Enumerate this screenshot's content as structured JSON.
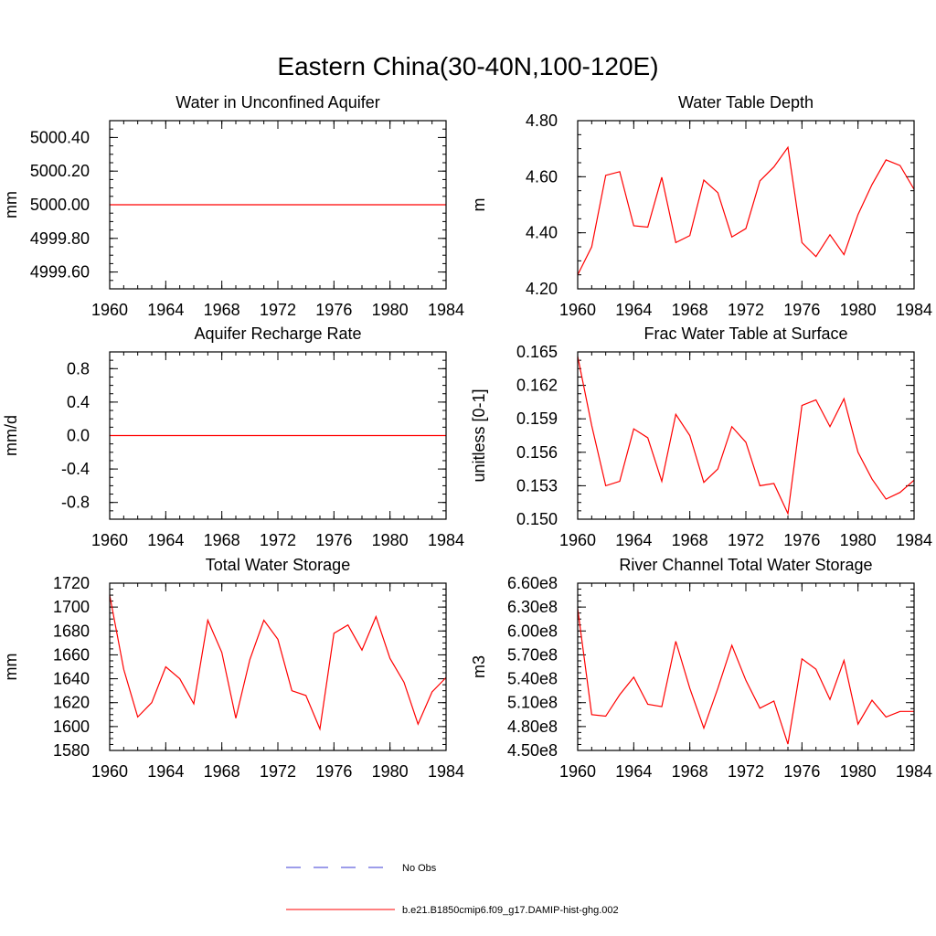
{
  "figure": {
    "title": "Eastern China(30-40N,100-120E)",
    "legend": [
      {
        "label": "No Obs",
        "color": "#3b3bd6",
        "style": "dashed"
      },
      {
        "label": "b.e21.B1850cmip6.f09_g17.DAMIP-hist-ghg.002",
        "color": "#ff0000",
        "style": "solid"
      }
    ]
  },
  "chart_data": [
    {
      "type": "line",
      "title": "Water in Unconfined Aquifer",
      "ylabel": "mm",
      "xlim": [
        1960,
        1984
      ],
      "ylim": [
        4999.5,
        5000.5
      ],
      "xticks": [
        "1960",
        "1964",
        "1968",
        "1972",
        "1976",
        "1980",
        "1984"
      ],
      "yticks": [
        {
          "v": 4999.6,
          "label": "4999.60"
        },
        {
          "v": 4999.8,
          "label": "4999.80"
        },
        {
          "v": 5000.0,
          "label": "5000.00"
        },
        {
          "v": 5000.2,
          "label": "5000.20"
        },
        {
          "v": 5000.4,
          "label": "5000.40"
        }
      ],
      "x": [
        1960,
        1961,
        1962,
        1963,
        1964,
        1965,
        1966,
        1967,
        1968,
        1969,
        1970,
        1971,
        1972,
        1973,
        1974,
        1975,
        1976,
        1977,
        1978,
        1979,
        1980,
        1981,
        1982,
        1983,
        1984
      ],
      "series": [
        {
          "values": [
            5000.0,
            5000.0,
            5000.0,
            5000.0,
            5000.0,
            5000.0,
            5000.0,
            5000.0,
            5000.0,
            5000.0,
            5000.0,
            5000.0,
            5000.0,
            5000.0,
            5000.0,
            5000.0,
            5000.0,
            5000.0,
            5000.0,
            5000.0,
            5000.0,
            5000.0,
            5000.0,
            5000.0,
            5000.0
          ],
          "color": "#ff0000"
        }
      ]
    },
    {
      "type": "line",
      "title": "Water Table Depth",
      "ylabel": "m",
      "xlim": [
        1960,
        1984
      ],
      "ylim": [
        4.2,
        4.8
      ],
      "xticks": [
        "1960",
        "1964",
        "1968",
        "1972",
        "1976",
        "1980",
        "1984"
      ],
      "yticks": [
        {
          "v": 4.2,
          "label": "4.20"
        },
        {
          "v": 4.4,
          "label": "4.40"
        },
        {
          "v": 4.6,
          "label": "4.60"
        },
        {
          "v": 4.8,
          "label": "4.80"
        }
      ],
      "x": [
        1960,
        1961,
        1962,
        1963,
        1964,
        1965,
        1966,
        1967,
        1968,
        1969,
        1970,
        1971,
        1972,
        1973,
        1974,
        1975,
        1976,
        1977,
        1978,
        1979,
        1980,
        1981,
        1982,
        1983,
        1984
      ],
      "series": [
        {
          "values": [
            4.25,
            4.35,
            4.605,
            4.618,
            4.425,
            4.42,
            4.598,
            4.365,
            4.39,
            4.588,
            4.543,
            4.385,
            4.415,
            4.585,
            4.635,
            4.705,
            4.365,
            4.315,
            4.393,
            4.322,
            4.465,
            4.572,
            4.66,
            4.64,
            4.555
          ],
          "color": "#ff0000"
        }
      ]
    },
    {
      "type": "line",
      "title": "Aquifer Recharge Rate",
      "ylabel": "mm/d",
      "xlim": [
        1960,
        1984
      ],
      "ylim": [
        -1.0,
        1.0
      ],
      "xticks": [
        "1960",
        "1964",
        "1968",
        "1972",
        "1976",
        "1980",
        "1984"
      ],
      "yticks": [
        {
          "v": -0.8,
          "label": "-0.8"
        },
        {
          "v": -0.4,
          "label": "-0.4"
        },
        {
          "v": 0.0,
          "label": "0.0"
        },
        {
          "v": 0.4,
          "label": "0.4"
        },
        {
          "v": 0.8,
          "label": "0.8"
        }
      ],
      "x": [
        1960,
        1961,
        1962,
        1963,
        1964,
        1965,
        1966,
        1967,
        1968,
        1969,
        1970,
        1971,
        1972,
        1973,
        1974,
        1975,
        1976,
        1977,
        1978,
        1979,
        1980,
        1981,
        1982,
        1983,
        1984
      ],
      "series": [
        {
          "values": [
            0,
            0,
            0,
            0,
            0,
            0,
            0,
            0,
            0,
            0,
            0,
            0,
            0,
            0,
            0,
            0,
            0,
            0,
            0,
            0,
            0,
            0,
            0,
            0,
            0
          ],
          "color": "#ff0000"
        }
      ]
    },
    {
      "type": "line",
      "title": "Frac Water Table at Surface",
      "ylabel": "unitless [0-1]",
      "xlim": [
        1960,
        1984
      ],
      "ylim": [
        0.15,
        0.165
      ],
      "xticks": [
        "1960",
        "1964",
        "1968",
        "1972",
        "1976",
        "1980",
        "1984"
      ],
      "yticks": [
        {
          "v": 0.15,
          "label": "0.150"
        },
        {
          "v": 0.153,
          "label": "0.153"
        },
        {
          "v": 0.156,
          "label": "0.156"
        },
        {
          "v": 0.159,
          "label": "0.159"
        },
        {
          "v": 0.162,
          "label": "0.162"
        },
        {
          "v": 0.165,
          "label": "0.165"
        }
      ],
      "x": [
        1960,
        1961,
        1962,
        1963,
        1964,
        1965,
        1966,
        1967,
        1968,
        1969,
        1970,
        1971,
        1972,
        1973,
        1974,
        1975,
        1976,
        1977,
        1978,
        1979,
        1980,
        1981,
        1982,
        1983,
        1984
      ],
      "series": [
        {
          "values": [
            0.1646,
            0.1584,
            0.153,
            0.1534,
            0.1581,
            0.1573,
            0.1534,
            0.1594,
            0.1575,
            0.1533,
            0.1545,
            0.1583,
            0.1569,
            0.153,
            0.1532,
            0.1505,
            0.1602,
            0.1607,
            0.1583,
            0.1608,
            0.156,
            0.1536,
            0.1518,
            0.1524,
            0.1535
          ],
          "color": "#ff0000"
        }
      ]
    },
    {
      "type": "line",
      "title": "Total Water Storage",
      "ylabel": "mm",
      "xlim": [
        1960,
        1984
      ],
      "ylim": [
        1580,
        1720
      ],
      "xticks": [
        "1960",
        "1964",
        "1968",
        "1972",
        "1976",
        "1980",
        "1984"
      ],
      "yticks": [
        {
          "v": 1580,
          "label": "1580"
        },
        {
          "v": 1600,
          "label": "1600"
        },
        {
          "v": 1620,
          "label": "1620"
        },
        {
          "v": 1640,
          "label": "1640"
        },
        {
          "v": 1660,
          "label": "1660"
        },
        {
          "v": 1680,
          "label": "1680"
        },
        {
          "v": 1700,
          "label": "1700"
        },
        {
          "v": 1720,
          "label": "1720"
        }
      ],
      "x": [
        1960,
        1961,
        1962,
        1963,
        1964,
        1965,
        1966,
        1967,
        1968,
        1969,
        1970,
        1971,
        1972,
        1973,
        1974,
        1975,
        1976,
        1977,
        1978,
        1979,
        1980,
        1981,
        1982,
        1983,
        1984
      ],
      "series": [
        {
          "values": [
            1710,
            1648,
            1608,
            1620,
            1650,
            1640,
            1619,
            1689,
            1662,
            1607,
            1656,
            1689,
            1673,
            1630,
            1626,
            1598,
            1678,
            1685,
            1664,
            1692,
            1657,
            1637,
            1602,
            1629,
            1641
          ],
          "color": "#ff0000"
        }
      ]
    },
    {
      "type": "line",
      "title": "River Channel Total Water Storage",
      "ylabel": "m3",
      "xlim": [
        1960,
        1984
      ],
      "ylim": [
        450000000,
        660000000
      ],
      "xticks": [
        "1960",
        "1964",
        "1968",
        "1972",
        "1976",
        "1980",
        "1984"
      ],
      "yticks": [
        {
          "v": 450000000,
          "label": "4.50e8"
        },
        {
          "v": 480000000,
          "label": "4.80e8"
        },
        {
          "v": 510000000,
          "label": "5.10e8"
        },
        {
          "v": 540000000,
          "label": "5.40e8"
        },
        {
          "v": 570000000,
          "label": "5.70e8"
        },
        {
          "v": 600000000,
          "label": "6.00e8"
        },
        {
          "v": 630000000,
          "label": "6.30e8"
        },
        {
          "v": 660000000,
          "label": "6.60e8"
        }
      ],
      "x": [
        1960,
        1961,
        1962,
        1963,
        1964,
        1965,
        1966,
        1967,
        1968,
        1969,
        1970,
        1971,
        1972,
        1973,
        1974,
        1975,
        1976,
        1977,
        1978,
        1979,
        1980,
        1981,
        1982,
        1983,
        1984
      ],
      "series": [
        {
          "values": [
            628000000,
            495000000,
            493000000,
            520000000,
            542000000,
            508000000,
            505000000,
            587000000,
            528000000,
            478000000,
            528000000,
            582000000,
            538000000,
            503000000,
            512000000,
            458000000,
            565000000,
            552000000,
            514000000,
            563000000,
            483000000,
            513000000,
            492000000,
            499000000,
            499000000
          ],
          "color": "#ff0000"
        }
      ]
    }
  ]
}
